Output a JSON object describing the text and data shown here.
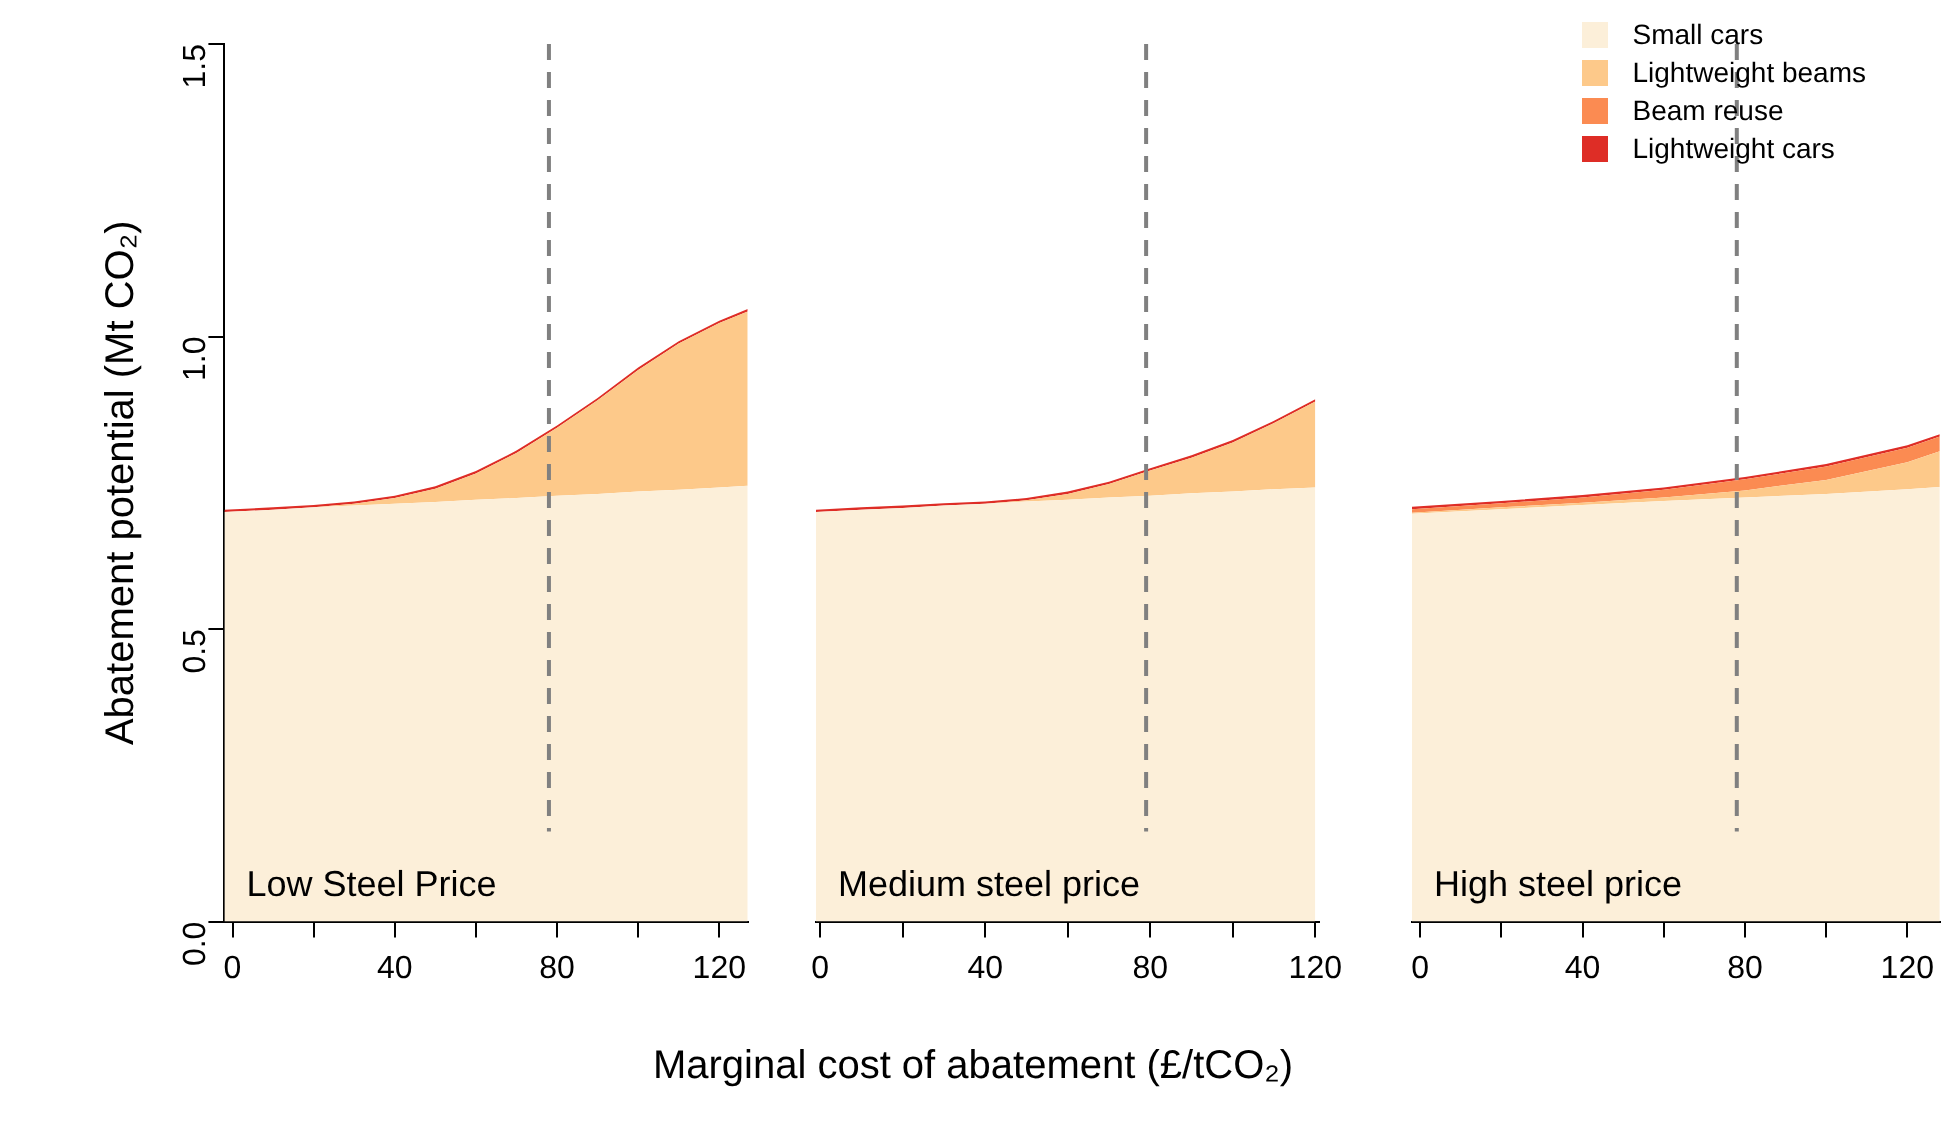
{
  "chart_data": [
    {
      "type": "area",
      "stacked": true,
      "ylabel": "Abatement potential (Mt CO₂)",
      "annotations": [
        "Low Steel Price"
      ],
      "x": [
        -2,
        10,
        20,
        30,
        40,
        50,
        60,
        70,
        80,
        90,
        100,
        110,
        120,
        127
      ],
      "xlim": [
        -2,
        127
      ],
      "xticks": [
        0,
        {
          "value": 20,
          "label": null
        },
        40,
        {
          "value": 60,
          "label": null
        },
        80,
        {
          "value": 100,
          "label": null
        },
        120
      ],
      "ylim": [
        0,
        1.5
      ],
      "yticks": [
        {
          "value": 0,
          "label": "0.0"
        },
        0.5,
        {
          "value": 1,
          "label": "1.0"
        },
        1.5
      ],
      "ref_lines": [
        {
          "axis": "x",
          "value": 78,
          "color": "#808080",
          "line_style": "dashed"
        }
      ],
      "series": [
        {
          "color": "#fcefd9",
          "values": [
            0.7,
            0.704,
            0.708,
            0.711,
            0.714,
            0.717,
            0.721,
            0.724,
            0.728,
            0.731,
            0.735,
            0.738,
            0.742,
            0.745
          ]
        },
        {
          "color": "#fdc98a",
          "values": [
            0,
            0,
            0,
            0.003,
            0.01,
            0.023,
            0.045,
            0.077,
            0.116,
            0.16,
            0.208,
            0.25,
            0.281,
            0.298
          ]
        },
        {
          "color": "#de2d26",
          "values": [
            0.004,
            0.004,
            0.004,
            0.004,
            0.004,
            0.004,
            0.004,
            0.004,
            0.004,
            0.004,
            0.004,
            0.004,
            0.004,
            0.004
          ]
        }
      ]
    },
    {
      "type": "area",
      "stacked": true,
      "xlabel": "Marginal cost of abatement (£/tCO₂)",
      "annotations": [
        "Medium steel price"
      ],
      "tick_labels": "x",
      "x": [
        -1,
        10,
        20,
        30,
        40,
        50,
        60,
        70,
        80,
        90,
        100,
        110,
        120
      ],
      "xlim": [
        -1,
        121
      ],
      "xticks": [
        0,
        {
          "value": 20,
          "label": null
        },
        40,
        {
          "value": 60,
          "label": null
        },
        80,
        {
          "value": 100,
          "label": null
        },
        120
      ],
      "ylim": [
        0,
        1.5
      ],
      "yticks": [
        0.0,
        0.5,
        1.0,
        1.5
      ],
      "ref_lines": [
        {
          "axis": "x",
          "value": 79,
          "color": "#808080",
          "line_style": "dashed"
        }
      ],
      "series": [
        {
          "color": "#fcefd9",
          "values": [
            0.7,
            0.704,
            0.707,
            0.711,
            0.714,
            0.718,
            0.721,
            0.725,
            0.728,
            0.732,
            0.735,
            0.739,
            0.742
          ]
        },
        {
          "color": "#fdc98a",
          "values": [
            0,
            0,
            0,
            0,
            0,
            0.002,
            0.01,
            0.023,
            0.043,
            0.061,
            0.084,
            0.113,
            0.147
          ]
        },
        {
          "color": "#de2d26",
          "values": [
            0.004,
            0.004,
            0.004,
            0.004,
            0.004,
            0.004,
            0.004,
            0.004,
            0.004,
            0.004,
            0.004,
            0.004,
            0.004
          ]
        }
      ]
    },
    {
      "type": "area",
      "stacked": true,
      "annotations": [
        "High steel price"
      ],
      "tick_labels": "x",
      "legend": "top right",
      "x": [
        -2,
        20,
        40,
        60,
        80,
        100,
        120,
        128
      ],
      "xlim": [
        -2,
        128
      ],
      "xticks": [
        0,
        {
          "value": 20,
          "label": null
        },
        40,
        {
          "value": 60,
          "label": null
        },
        80,
        {
          "value": 100,
          "label": null
        },
        120
      ],
      "ylim": [
        0,
        1.5
      ],
      "yticks": [
        0.0,
        0.5,
        1.0,
        1.5
      ],
      "ref_lines": [
        {
          "axis": "x",
          "value": 78,
          "color": "#808080",
          "line_style": "dashed"
        }
      ],
      "series": [
        {
          "name": "Small cars",
          "color": "#fcefd9",
          "values": [
            0.697,
            0.705,
            0.712,
            0.719,
            0.725,
            0.731,
            0.739,
            0.743
          ]
        },
        {
          "name": "Lightweight beams",
          "color": "#fdc98a",
          "values": [
            0.002,
            0.003,
            0.004,
            0.006,
            0.012,
            0.024,
            0.046,
            0.061
          ]
        },
        {
          "name": "Beam reuse",
          "color": "#fb8b52",
          "values": [
            0.006,
            0.007,
            0.009,
            0.013,
            0.019,
            0.023,
            0.025,
            0.025
          ]
        },
        {
          "name": "Lightweight cars",
          "color": "#de2d26",
          "values": [
            0.004,
            0.004,
            0.004,
            0.004,
            0.004,
            0.004,
            0.004,
            0.004
          ]
        }
      ]
    }
  ]
}
